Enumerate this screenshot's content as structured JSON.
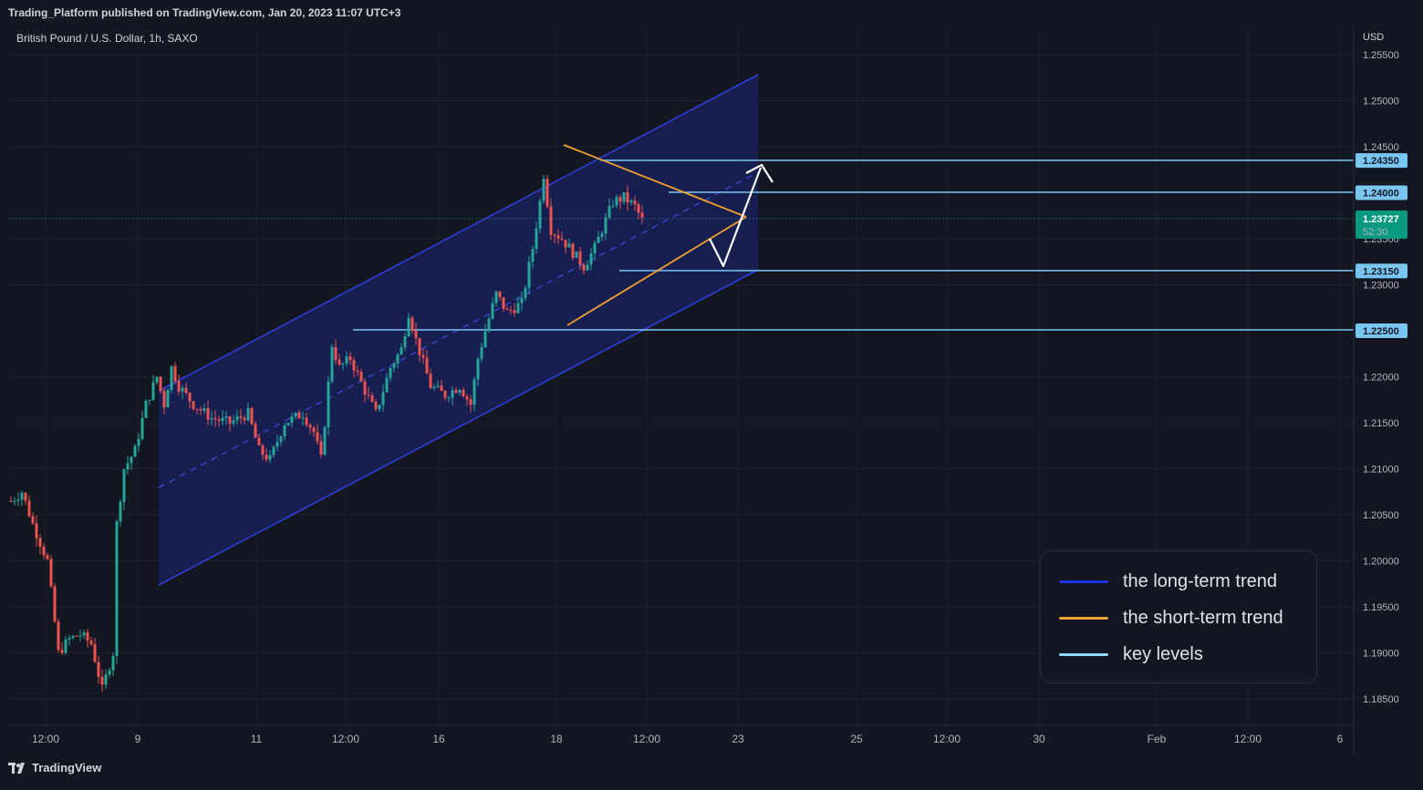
{
  "header": {
    "published_by": "Trading_Platform published on TradingView.com, Jan 20, 2023 11:07 UTC+3"
  },
  "chart_header": {
    "symbol": "British Pound / U.S. Dollar, 1h, SAXO",
    "currency": "USD"
  },
  "footer": {
    "brand": "TradingView"
  },
  "colors": {
    "background": "#131722",
    "bull": "#26a69a",
    "bear": "#ef5350",
    "long_trend": "#2f3fd6",
    "short_trend": "#f0a030",
    "key_level": "#7ac6f2",
    "arrow": "#ffffff",
    "current_price_bg": "#089981"
  },
  "legend": {
    "items": [
      {
        "label": "the long-term trend",
        "color": "#1f33e6"
      },
      {
        "label": "the short-term trend",
        "color": "#f5a13a"
      },
      {
        "label": "key levels",
        "color": "#8fd8ff"
      }
    ]
  },
  "chart_data": {
    "type": "candlestick",
    "title": "British Pound / U.S. Dollar, 1h, SAXO",
    "y_unit": "USD",
    "ylim": [
      1.1835,
      1.2565
    ],
    "y_ticks": [
      "1.25500",
      "1.25000",
      "1.24500",
      "1.23500",
      "1.23000",
      "1.22000",
      "1.21500",
      "1.21000",
      "1.20500",
      "1.20000",
      "1.19500",
      "1.19000",
      "1.18500"
    ],
    "x_ticks": [
      "12:00",
      "9",
      "11",
      "12:00",
      "16",
      "18",
      "12:00",
      "23",
      "25",
      "12:00",
      "30",
      "Feb",
      "12:00",
      "6"
    ],
    "grid": true,
    "current_price": {
      "value": "1.23727",
      "countdown": "52:30"
    },
    "key_levels": [
      {
        "label": "1.24350",
        "value": 1.2435
      },
      {
        "label": "1.24000",
        "value": 1.24
      },
      {
        "label": "1.23150",
        "value": 1.2315
      },
      {
        "label": "1.22500",
        "value": 1.225
      }
    ],
    "price_path": [
      [
        0,
        1.2065
      ],
      [
        3,
        1.2075
      ],
      [
        6,
        1.204
      ],
      [
        9,
        1.201
      ],
      [
        10,
        1.2
      ],
      [
        13,
        1.19
      ],
      [
        16,
        1.1915
      ],
      [
        19,
        1.192
      ],
      [
        22,
        1.191
      ],
      [
        25,
        1.186
      ],
      [
        28,
        1.19
      ],
      [
        29,
        1.204
      ],
      [
        31,
        1.21
      ],
      [
        34,
        1.212
      ],
      [
        37,
        1.217
      ],
      [
        40,
        1.22
      ],
      [
        42,
        1.217
      ],
      [
        44,
        1.221
      ],
      [
        46,
        1.219
      ],
      [
        50,
        1.217
      ],
      [
        55,
        1.2155
      ],
      [
        60,
        1.215
      ],
      [
        65,
        1.216
      ],
      [
        68,
        1.212
      ],
      [
        71,
        1.211
      ],
      [
        75,
        1.215
      ],
      [
        80,
        1.216
      ],
      [
        83,
        1.214
      ],
      [
        85,
        1.211
      ],
      [
        86,
        1.215
      ],
      [
        88,
        1.2235
      ],
      [
        90,
        1.221
      ],
      [
        93,
        1.222
      ],
      [
        97,
        1.2185
      ],
      [
        100,
        1.216
      ],
      [
        104,
        1.221
      ],
      [
        107,
        1.223
      ],
      [
        109,
        1.227
      ],
      [
        111,
        1.224
      ],
      [
        115,
        1.219
      ],
      [
        119,
        1.218
      ],
      [
        123,
        1.219
      ],
      [
        126,
        1.217
      ],
      [
        128,
        1.222
      ],
      [
        130,
        1.225
      ],
      [
        133,
        1.229
      ],
      [
        136,
        1.227
      ],
      [
        140,
        1.228
      ],
      [
        143,
        1.234
      ],
      [
        145,
        1.239
      ],
      [
        146,
        1.242
      ],
      [
        148,
        1.236
      ],
      [
        151,
        1.235
      ],
      [
        155,
        1.233
      ],
      [
        157,
        1.232
      ],
      [
        160,
        1.234
      ],
      [
        163,
        1.237
      ],
      [
        165,
        1.239
      ],
      [
        168,
        1.2395
      ],
      [
        171,
        1.2385
      ],
      [
        173,
        1.237
      ]
    ]
  }
}
